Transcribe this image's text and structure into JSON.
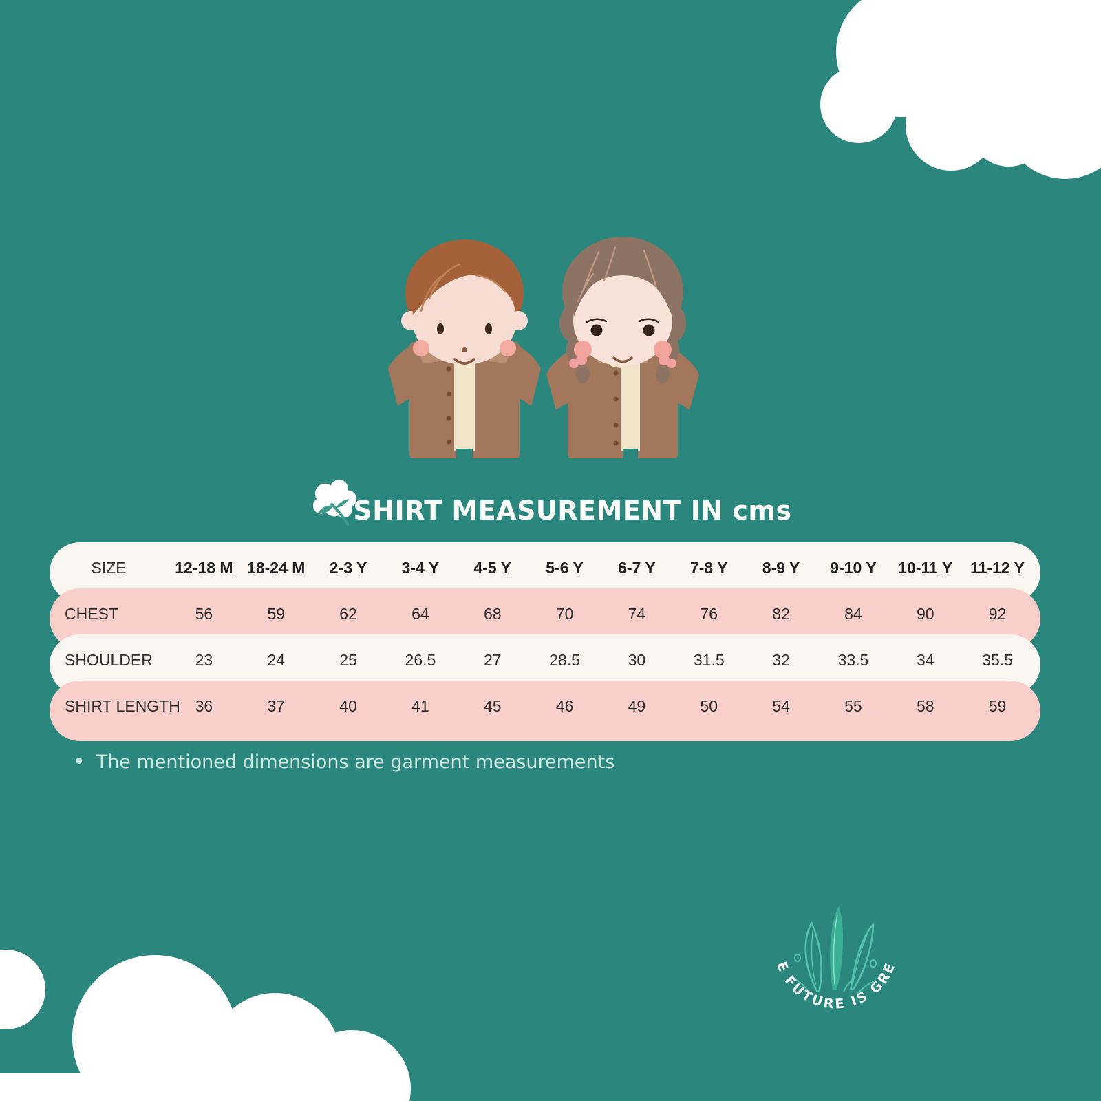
{
  "title": "SHIRT MEASUREMENT IN cms",
  "note": "The mentioned dimensions are garment measurements",
  "logo_text": "THE FUTURE IS GREEN",
  "table": {
    "header_label": "SIZE",
    "columns": [
      "12-18 M",
      "18-24 M",
      "2-3 Y",
      "3-4 Y",
      "4-5 Y",
      "5-6 Y",
      "6-7 Y",
      "7-8 Y",
      "8-9 Y",
      "9-10 Y",
      "10-11 Y",
      "11-12 Y"
    ],
    "rows": [
      {
        "label": "CHEST",
        "values": [
          "56",
          "59",
          "62",
          "64",
          "68",
          "70",
          "74",
          "76",
          "82",
          "84",
          "90",
          "92"
        ]
      },
      {
        "label": "SHOULDER",
        "values": [
          "23",
          "24",
          "25",
          "26.5",
          "27",
          "28.5",
          "30",
          "31.5",
          "32",
          "33.5",
          "34",
          "35.5"
        ]
      },
      {
        "label": "SHIRT LENGTH",
        "values": [
          "36",
          "37",
          "40",
          "41",
          "45",
          "46",
          "49",
          "50",
          "54",
          "55",
          "58",
          "59"
        ]
      }
    ]
  },
  "icons": {
    "cotton": "cotton-flower-icon",
    "clouds": "white-cloud-shapes",
    "logo_leaves": "leaf-sprig-icon",
    "kids": "boy-and-girl-in-brown-shirts"
  },
  "colors": {
    "background": "#2B877D",
    "row_white": "#FAF7F0",
    "row_pink": "#F9CFCB",
    "table_text": "#2E2E2E",
    "title_text": "#FBFDF9",
    "note_text": "#CFE9E1",
    "shirt_brown": "#A3775B",
    "collar_brown": "#BA8F71",
    "inner_cream": "#EFE4C7",
    "boy_hair": "#A5613A",
    "girl_hair": "#8D7364",
    "skin": "#F6DCD3",
    "cheek_pink": "#F4ACA1",
    "leaf_teal": "#55C3AB"
  },
  "chart_data": {
    "type": "table",
    "title": "SHIRT MEASUREMENT IN cms",
    "unit": "cm",
    "columns": [
      "12-18 M",
      "18-24 M",
      "2-3 Y",
      "3-4 Y",
      "4-5 Y",
      "5-6 Y",
      "6-7 Y",
      "7-8 Y",
      "8-9 Y",
      "9-10 Y",
      "10-11 Y",
      "11-12 Y"
    ],
    "rows": [
      {
        "label": "CHEST",
        "values": [
          56,
          59,
          62,
          64,
          68,
          70,
          74,
          76,
          82,
          84,
          90,
          92
        ]
      },
      {
        "label": "SHOULDER",
        "values": [
          23,
          24,
          25,
          26.5,
          27,
          28.5,
          30,
          31.5,
          32,
          33.5,
          34,
          35.5
        ]
      },
      {
        "label": "SHIRT LENGTH",
        "values": [
          36,
          37,
          40,
          41,
          45,
          46,
          49,
          50,
          54,
          55,
          58,
          59
        ]
      }
    ],
    "notes": [
      "The mentioned dimensions are garment measurements"
    ]
  }
}
